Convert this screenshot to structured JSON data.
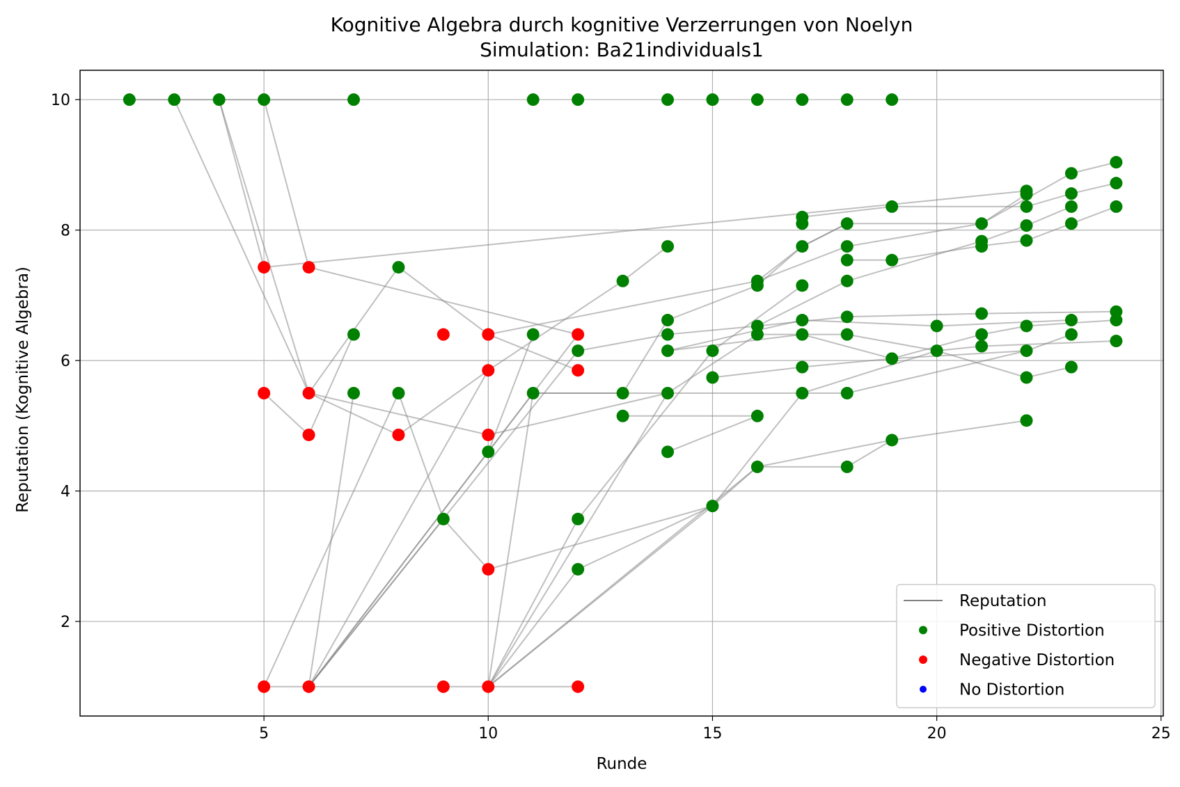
{
  "chart_data": {
    "type": "scatter",
    "title": "Kognitive Algebra durch kognitive Verzerrungen von Noelyn",
    "subtitle": "Simulation: Ba21individuals1",
    "xlabel": "Runde",
    "ylabel": "Reputation (Kognitive Algebra)",
    "xlim": [
      0.9,
      25.05
    ],
    "ylim": [
      0.55,
      10.45
    ],
    "xticks": [
      5,
      10,
      15,
      20,
      25
    ],
    "yticks": [
      2,
      4,
      6,
      8,
      10
    ],
    "grid": true,
    "legend_position": "lower-right",
    "legend": [
      {
        "label": "Reputation",
        "kind": "line",
        "color": "#808080"
      },
      {
        "label": "Positive Distortion",
        "kind": "marker",
        "color": "#008000"
      },
      {
        "label": "Negative Distortion",
        "kind": "marker",
        "color": "#ff0000"
      },
      {
        "label": "No Distortion",
        "kind": "marker",
        "color": "#0000ff"
      }
    ],
    "colors": {
      "positive": "#008000",
      "negative": "#ff0000",
      "none": "#0000ff",
      "line": "#808080"
    },
    "series": [
      {
        "points": [
          [
            3,
            10
          ],
          [
            6,
            5.5
          ],
          [
            8,
            7.43
          ]
        ]
      },
      {
        "points": [
          [
            6,
            1
          ],
          [
            7,
            5.5
          ]
        ]
      },
      {
        "points": [
          [
            10,
            1
          ],
          [
            11,
            5.5
          ]
        ]
      },
      {
        "points": [
          [
            2,
            10
          ],
          [
            3,
            10
          ]
        ]
      },
      {
        "points": [
          [
            4,
            10
          ],
          [
            5,
            7.43
          ],
          [
            22,
            8.6
          ]
        ]
      },
      {
        "points": [
          [
            5,
            10
          ],
          [
            6,
            7.43
          ],
          [
            12,
            6.4
          ]
        ]
      },
      {
        "points": [
          [
            5,
            5.5
          ],
          [
            6,
            4.86
          ],
          [
            7,
            6.4
          ]
        ]
      },
      {
        "points": [
          [
            5,
            1
          ],
          [
            6,
            1
          ],
          [
            9,
            1
          ],
          [
            10,
            1
          ],
          [
            12,
            1
          ]
        ]
      },
      {
        "points": [
          [
            3,
            10
          ],
          [
            7,
            10
          ]
        ]
      },
      {
        "points": [
          [
            8,
            7.43
          ],
          [
            10,
            6.4
          ],
          [
            12,
            5.85
          ]
        ]
      },
      {
        "points": [
          [
            8,
            5.5
          ],
          [
            9,
            3.57
          ],
          [
            10,
            2.8
          ],
          [
            15,
            3.77
          ]
        ]
      },
      {
        "points": [
          [
            5,
            1
          ],
          [
            8,
            5.5
          ]
        ]
      },
      {
        "points": [
          [
            6,
            5.5
          ],
          [
            10,
            4.86
          ],
          [
            14,
            5.5
          ]
        ]
      },
      {
        "points": [
          [
            6,
            1
          ],
          [
            9,
            3.57
          ]
        ]
      },
      {
        "points": [
          [
            6,
            1
          ],
          [
            10,
            4.6
          ],
          [
            11,
            6.4
          ]
        ]
      },
      {
        "points": [
          [
            10,
            4.6
          ],
          [
            12,
            6.4
          ]
        ]
      },
      {
        "points": [
          [
            6,
            1
          ],
          [
            10,
            5.85
          ]
        ]
      },
      {
        "points": [
          [
            6,
            1
          ],
          [
            11,
            5.5
          ]
        ]
      },
      {
        "points": [
          [
            6,
            1
          ],
          [
            12,
            6.15
          ]
        ]
      },
      {
        "points": [
          [
            4,
            10
          ],
          [
            6,
            5.5
          ],
          [
            8,
            4.86
          ],
          [
            10,
            5.85
          ],
          [
            13,
            7.22
          ],
          [
            14,
            7.75
          ]
        ]
      },
      {
        "points": [
          [
            10,
            6.4
          ],
          [
            16,
            7.22
          ],
          [
            17,
            7.75
          ],
          [
            18,
            8.1
          ]
        ]
      },
      {
        "points": [
          [
            11,
            5.5
          ],
          [
            13,
            5.5
          ],
          [
            14,
            6.62
          ]
        ]
      },
      {
        "points": [
          [
            11,
            5.5
          ],
          [
            18,
            5.5
          ],
          [
            22,
            6.15
          ]
        ]
      },
      {
        "points": [
          [
            12,
            3.57
          ],
          [
            15,
            6.15
          ]
        ]
      },
      {
        "points": [
          [
            12,
            2.8
          ],
          [
            15,
            3.77
          ]
        ]
      },
      {
        "points": [
          [
            10,
            1
          ],
          [
            12,
            3.57
          ]
        ]
      },
      {
        "points": [
          [
            10,
            1
          ],
          [
            12,
            2.8
          ]
        ]
      },
      {
        "points": [
          [
            10,
            1
          ],
          [
            14,
            5.5
          ]
        ]
      },
      {
        "points": [
          [
            10,
            1
          ],
          [
            15,
            3.77
          ]
        ]
      },
      {
        "points": [
          [
            10,
            1
          ],
          [
            16,
            4.37
          ]
        ]
      },
      {
        "points": [
          [
            12,
            6.15
          ],
          [
            14,
            6.4
          ],
          [
            16,
            6.53
          ],
          [
            18,
            6.67
          ],
          [
            21,
            6.72
          ],
          [
            24,
            6.75
          ]
        ]
      },
      {
        "points": [
          [
            14,
            6.62
          ],
          [
            16,
            7.15
          ],
          [
            17,
            7.75
          ],
          [
            18,
            8.1
          ],
          [
            21,
            8.1
          ],
          [
            23,
            8.87
          ],
          [
            24,
            9.04
          ]
        ]
      },
      {
        "points": [
          [
            15,
            5.74
          ],
          [
            17,
            5.9
          ],
          [
            19,
            6.03
          ],
          [
            21,
            6.4
          ],
          [
            22,
            6.53
          ],
          [
            24,
            6.62
          ]
        ]
      },
      {
        "points": [
          [
            15,
            3.77
          ],
          [
            17,
            5.5
          ],
          [
            20,
            6.15
          ],
          [
            21,
            6.22
          ],
          [
            24,
            6.3
          ]
        ]
      },
      {
        "points": [
          [
            15,
            3.77
          ],
          [
            16,
            4.37
          ],
          [
            18,
            4.37
          ],
          [
            19,
            4.78
          ],
          [
            22,
            5.08
          ]
        ]
      },
      {
        "points": [
          [
            16,
            4.37
          ],
          [
            19,
            4.78
          ]
        ]
      },
      {
        "points": [
          [
            17,
            8.2
          ],
          [
            19,
            8.36
          ],
          [
            22,
            8.36
          ],
          [
            23,
            8.56
          ],
          [
            24,
            8.72
          ]
        ]
      },
      {
        "points": [
          [
            18,
            7.54
          ],
          [
            19,
            7.54
          ],
          [
            21,
            7.76
          ],
          [
            22,
            7.84
          ],
          [
            23,
            8.1
          ],
          [
            24,
            8.36
          ]
        ]
      },
      {
        "points": [
          [
            14,
            5.5
          ],
          [
            16,
            6.4
          ],
          [
            18,
            6.4
          ],
          [
            20,
            6.15
          ],
          [
            22,
            5.74
          ],
          [
            23,
            5.9
          ]
        ]
      },
      {
        "points": [
          [
            13,
            5.15
          ],
          [
            16,
            5.15
          ]
        ]
      },
      {
        "points": [
          [
            14,
            6.15
          ],
          [
            17,
            6.62
          ],
          [
            20,
            6.53
          ],
          [
            23,
            6.62
          ]
        ]
      },
      {
        "points": [
          [
            16,
            6.53
          ],
          [
            18,
            7.22
          ],
          [
            21,
            7.83
          ],
          [
            22,
            8.07
          ],
          [
            23,
            8.36
          ]
        ]
      },
      {
        "points": [
          [
            16,
            7.22
          ],
          [
            18,
            7.75
          ],
          [
            21,
            8.1
          ],
          [
            22,
            8.55
          ]
        ]
      },
      {
        "points": [
          [
            14,
            6.15
          ],
          [
            17,
            6.4
          ],
          [
            19,
            6.03
          ],
          [
            22,
            6.15
          ],
          [
            23,
            6.4
          ]
        ]
      },
      {
        "points": [
          [
            15,
            6.15
          ],
          [
            17,
            7.15
          ]
        ]
      },
      {
        "points": [
          [
            14,
            4.6
          ],
          [
            16,
            5.15
          ]
        ]
      }
    ],
    "positive_points": [
      [
        2,
        10
      ],
      [
        3,
        10
      ],
      [
        4,
        10
      ],
      [
        5,
        10
      ],
      [
        7,
        10
      ],
      [
        11,
        10
      ],
      [
        12,
        10
      ],
      [
        14,
        10
      ],
      [
        15,
        10
      ],
      [
        16,
        10
      ],
      [
        17,
        10
      ],
      [
        18,
        10
      ],
      [
        19,
        10
      ],
      [
        8,
        7.43
      ],
      [
        7,
        6.4
      ],
      [
        7,
        5.5
      ],
      [
        8,
        5.5
      ],
      [
        9,
        3.57
      ],
      [
        10,
        4.6
      ],
      [
        11,
        6.4
      ],
      [
        11,
        5.5
      ],
      [
        12,
        6.15
      ],
      [
        12,
        3.57
      ],
      [
        12,
        2.8
      ],
      [
        13,
        7.22
      ],
      [
        13,
        5.5
      ],
      [
        13,
        5.15
      ],
      [
        14,
        7.75
      ],
      [
        14,
        6.62
      ],
      [
        14,
        6.4
      ],
      [
        14,
        6.15
      ],
      [
        14,
        5.5
      ],
      [
        14,
        4.6
      ],
      [
        15,
        6.15
      ],
      [
        15,
        5.74
      ],
      [
        15,
        3.77
      ],
      [
        16,
        7.22
      ],
      [
        16,
        7.15
      ],
      [
        16,
        6.53
      ],
      [
        16,
        6.4
      ],
      [
        16,
        5.15
      ],
      [
        16,
        4.37
      ],
      [
        17,
        8.2
      ],
      [
        17,
        8.1
      ],
      [
        17,
        7.75
      ],
      [
        17,
        7.15
      ],
      [
        17,
        6.62
      ],
      [
        17,
        6.4
      ],
      [
        17,
        5.9
      ],
      [
        17,
        5.5
      ],
      [
        18,
        8.1
      ],
      [
        18,
        7.75
      ],
      [
        18,
        7.54
      ],
      [
        18,
        7.22
      ],
      [
        18,
        6.67
      ],
      [
        18,
        6.4
      ],
      [
        18,
        5.5
      ],
      [
        18,
        4.37
      ],
      [
        19,
        8.36
      ],
      [
        19,
        7.54
      ],
      [
        19,
        6.03
      ],
      [
        19,
        4.78
      ],
      [
        20,
        6.53
      ],
      [
        20,
        6.15
      ],
      [
        21,
        8.1
      ],
      [
        21,
        7.83
      ],
      [
        21,
        7.75
      ],
      [
        21,
        6.72
      ],
      [
        21,
        6.4
      ],
      [
        21,
        6.22
      ],
      [
        22,
        8.6
      ],
      [
        22,
        8.55
      ],
      [
        22,
        8.36
      ],
      [
        22,
        8.07
      ],
      [
        22,
        7.84
      ],
      [
        22,
        6.53
      ],
      [
        22,
        6.15
      ],
      [
        22,
        5.74
      ],
      [
        22,
        5.08
      ],
      [
        23,
        8.87
      ],
      [
        23,
        8.56
      ],
      [
        23,
        8.36
      ],
      [
        23,
        8.1
      ],
      [
        23,
        6.62
      ],
      [
        23,
        6.4
      ],
      [
        23,
        5.9
      ],
      [
        24,
        9.04
      ],
      [
        24,
        8.72
      ],
      [
        24,
        8.36
      ],
      [
        24,
        6.75
      ],
      [
        24,
        6.62
      ],
      [
        24,
        6.3
      ]
    ],
    "negative_points": [
      [
        5,
        7.43
      ],
      [
        6,
        7.43
      ],
      [
        5,
        5.5
      ],
      [
        6,
        5.5
      ],
      [
        6,
        4.86
      ],
      [
        8,
        4.86
      ],
      [
        9,
        6.4
      ],
      [
        10,
        6.4
      ],
      [
        10,
        5.85
      ],
      [
        10,
        4.86
      ],
      [
        10,
        2.8
      ],
      [
        12,
        6.4
      ],
      [
        12,
        5.85
      ],
      [
        5,
        1
      ],
      [
        6,
        1
      ],
      [
        9,
        1
      ],
      [
        10,
        1
      ],
      [
        12,
        1
      ]
    ],
    "none_points": []
  }
}
